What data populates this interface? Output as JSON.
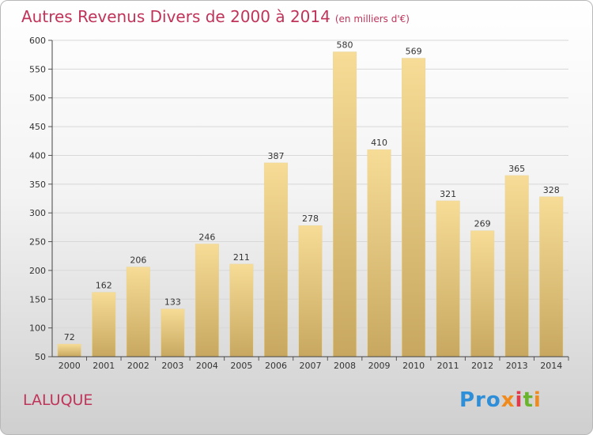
{
  "header": {
    "title": "Autres Revenus Divers de 2000 à 2014",
    "subtitle": "(en milliers d'€)"
  },
  "footer": {
    "place": "LALUQUE",
    "logo": "Proxiti"
  },
  "colors": {
    "title": "#c0345a",
    "bar_top": "#f6dc96",
    "bar_bottom": "#c8a860",
    "grid": "#d8d8d8"
  },
  "chart_data": {
    "type": "bar",
    "title": "Autres Revenus Divers de 2000 à 2014",
    "subtitle": "(en milliers d'€)",
    "xlabel": "",
    "ylabel": "",
    "categories": [
      "2000",
      "2001",
      "2002",
      "2003",
      "2004",
      "2005",
      "2006",
      "2007",
      "2008",
      "2009",
      "2010",
      "2011",
      "2012",
      "2013",
      "2014"
    ],
    "values": [
      72,
      162,
      206,
      133,
      246,
      211,
      387,
      278,
      580,
      410,
      569,
      321,
      269,
      365,
      328
    ],
    "ylim": [
      50,
      600
    ],
    "yticks": [
      50,
      100,
      150,
      200,
      250,
      300,
      350,
      400,
      450,
      500,
      550,
      600
    ],
    "grid": true,
    "legend": "none"
  }
}
